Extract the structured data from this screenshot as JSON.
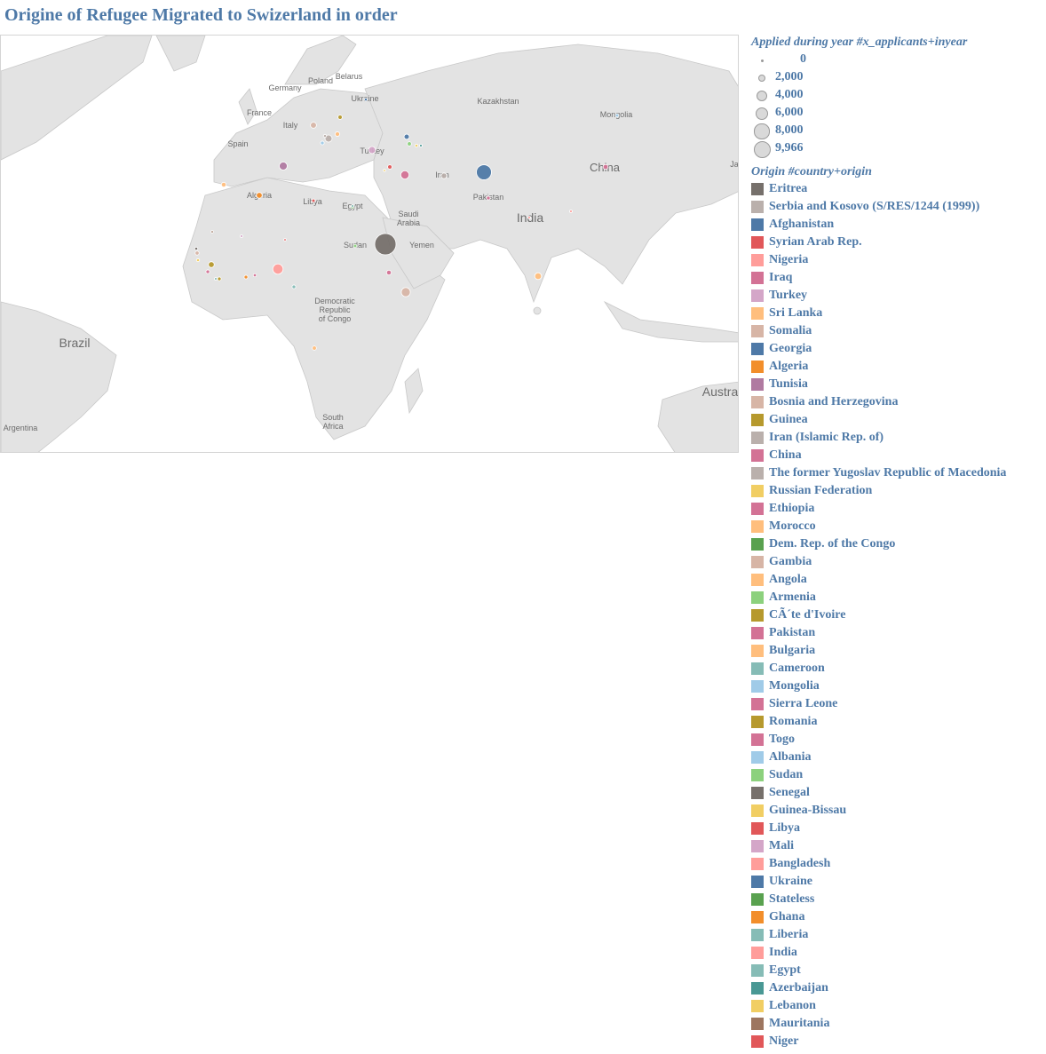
{
  "title": "Origine of Refugee Migrated to Swizerland in order",
  "map": {
    "region_labels": [
      {
        "id": "belarus",
        "text": "Belarus"
      },
      {
        "id": "poland",
        "text": "Poland"
      },
      {
        "id": "germany",
        "text": "Germany"
      },
      {
        "id": "ukraine",
        "text": "Ukraine"
      },
      {
        "id": "kazakhstan",
        "text": "Kazakhstan"
      },
      {
        "id": "mongolia",
        "text": "Mongolia"
      },
      {
        "id": "france",
        "text": "France"
      },
      {
        "id": "italy",
        "text": "Italy"
      },
      {
        "id": "spain",
        "text": "Spain"
      },
      {
        "id": "turkey",
        "text": "Turkey"
      },
      {
        "id": "china",
        "text": "China"
      },
      {
        "id": "iran",
        "text": "Iran"
      },
      {
        "id": "algeria",
        "text": "Algeria"
      },
      {
        "id": "libya",
        "text": "Libya"
      },
      {
        "id": "egypt",
        "text": "Egypt"
      },
      {
        "id": "saudi",
        "text": "Saudi Arabia"
      },
      {
        "id": "pakistan",
        "text": "Pakistan"
      },
      {
        "id": "india",
        "text": "India"
      },
      {
        "id": "sudan",
        "text": "Sudan"
      },
      {
        "id": "yemen",
        "text": "Yemen"
      },
      {
        "id": "drc",
        "text": "Democratic Republic of Congo"
      },
      {
        "id": "brazil",
        "text": "Brazil"
      },
      {
        "id": "south-africa",
        "text": "South Africa"
      },
      {
        "id": "australia",
        "text": "Austra"
      },
      {
        "id": "argentina",
        "text": "Argentina"
      },
      {
        "id": "japan",
        "text": "Ja"
      }
    ],
    "points": [
      {
        "origin": "Afghanistan",
        "applicants": 4950
      },
      {
        "origin": "Eritrea",
        "applicants": 9966
      },
      {
        "origin": "Tunisia",
        "applicants": 1400
      },
      {
        "origin": "Iraq",
        "applicants": 1500
      },
      {
        "origin": "Turkey",
        "applicants": 1100
      },
      {
        "origin": "Nigeria",
        "applicants": 2300
      },
      {
        "origin": "Somalia",
        "applicants": 1800
      },
      {
        "origin": "Sri Lanka",
        "applicants": 1000
      },
      {
        "origin": "Serbia and Kosovo (S/RES/1244 (1999))",
        "applicants": 1100
      },
      {
        "origin": "Bosnia and Herzegovina",
        "applicants": 800
      },
      {
        "origin": "Iran (Islamic Rep. of)",
        "applicants": 700
      },
      {
        "origin": "Guinea",
        "applicants": 750
      },
      {
        "origin": "Georgia",
        "applicants": 600
      },
      {
        "origin": "Algeria",
        "applicants": 750
      },
      {
        "origin": "China",
        "applicants": 550
      },
      {
        "origin": "Ethiopia",
        "applicants": 500
      },
      {
        "origin": "Morocco",
        "applicants": 500
      },
      {
        "origin": "Bulgaria",
        "applicants": 450
      },
      {
        "origin": "Angola",
        "applicants": 380
      },
      {
        "origin": "Gambia",
        "applicants": 350
      },
      {
        "origin": "Syrian Arab Rep.",
        "applicants": 400
      },
      {
        "origin": "Romania",
        "applicants": 400
      },
      {
        "origin": "Armenia",
        "applicants": 380
      },
      {
        "origin": "Côte d'Ivoire",
        "applicants": 300
      },
      {
        "origin": "Pakistan",
        "applicants": 300
      },
      {
        "origin": "Dem. Rep. of the Congo",
        "applicants": 300
      },
      {
        "origin": "Cameroon",
        "applicants": 300
      },
      {
        "origin": "Ghana",
        "applicants": 300
      },
      {
        "origin": "Sierra Leone",
        "applicants": 300
      },
      {
        "origin": "Mongolia",
        "applicants": 250
      },
      {
        "origin": "Albania",
        "applicants": 300
      },
      {
        "origin": "Sudan",
        "applicants": 250
      },
      {
        "origin": "Libya",
        "applicants": 250
      },
      {
        "origin": "Ukraine",
        "applicants": 200
      },
      {
        "origin": "Togo",
        "applicants": 220
      },
      {
        "origin": "Guinea-Bissau",
        "applicants": 200
      },
      {
        "origin": "Senegal",
        "applicants": 200
      },
      {
        "origin": "Russian Federation",
        "applicants": 200
      },
      {
        "origin": "The former Yugoslav Republic of Macedonia",
        "applicants": 200
      },
      {
        "origin": "Mali",
        "applicants": 150
      },
      {
        "origin": "Bangladesh",
        "applicants": 150
      },
      {
        "origin": "Liberia",
        "applicants": 150
      },
      {
        "origin": "India",
        "applicants": 150
      },
      {
        "origin": "Egypt",
        "applicants": 150
      },
      {
        "origin": "Azerbaijan",
        "applicants": 150
      },
      {
        "origin": "Lebanon",
        "applicants": 120
      },
      {
        "origin": "Mauritania",
        "applicants": 120
      },
      {
        "origin": "Niger",
        "applicants": 120
      }
    ]
  },
  "legend": {
    "size_title": "Applied during year #x_applicants+inyear",
    "size_items": [
      {
        "label": "0",
        "value": 0
      },
      {
        "label": "2,000",
        "value": 2000
      },
      {
        "label": "4,000",
        "value": 4000
      },
      {
        "label": "6,000",
        "value": 6000
      },
      {
        "label": "8,000",
        "value": 8000
      },
      {
        "label": "9,966",
        "value": 9966
      }
    ],
    "color_title": "Origin #country+origin",
    "color_items": [
      {
        "label": "Eritrea",
        "color": "#76706b"
      },
      {
        "label": "Serbia and Kosovo (S/RES/1244 (1999))",
        "color": "#bab0ac"
      },
      {
        "label": "Afghanistan",
        "color": "#4e79a7"
      },
      {
        "label": "Syrian Arab Rep.",
        "color": "#e15759"
      },
      {
        "label": "Nigeria",
        "color": "#ff9d9a"
      },
      {
        "label": "Iraq",
        "color": "#d37295"
      },
      {
        "label": "Turkey",
        "color": "#d4a6c8"
      },
      {
        "label": "Sri Lanka",
        "color": "#ffbe7d"
      },
      {
        "label": "Somalia",
        "color": "#d7b5a6"
      },
      {
        "label": "Georgia",
        "color": "#4e79a7"
      },
      {
        "label": "Algeria",
        "color": "#f28e2b"
      },
      {
        "label": "Tunisia",
        "color": "#b07aa1"
      },
      {
        "label": "Bosnia and Herzegovina",
        "color": "#d7b5a6"
      },
      {
        "label": "Guinea",
        "color": "#b6992d"
      },
      {
        "label": "Iran (Islamic Rep. of)",
        "color": "#bab0ac"
      },
      {
        "label": "China",
        "color": "#d37295"
      },
      {
        "label": "The former Yugoslav Republic of Macedonia",
        "color": "#bab0ac"
      },
      {
        "label": "Russian Federation",
        "color": "#f1ce63"
      },
      {
        "label": "Ethiopia",
        "color": "#d37295"
      },
      {
        "label": "Morocco",
        "color": "#ffbe7d"
      },
      {
        "label": "Dem. Rep. of the Congo",
        "color": "#59a14f"
      },
      {
        "label": "Gambia",
        "color": "#d7b5a6"
      },
      {
        "label": "Angola",
        "color": "#ffbe7d"
      },
      {
        "label": "Armenia",
        "color": "#8cd17d"
      },
      {
        "label": "CÃ´te d'Ivoire",
        "color": "#b6992d"
      },
      {
        "label": "Pakistan",
        "color": "#d37295"
      },
      {
        "label": "Bulgaria",
        "color": "#ffbe7d"
      },
      {
        "label": "Cameroon",
        "color": "#86bcb6"
      },
      {
        "label": "Mongolia",
        "color": "#a0cbe8"
      },
      {
        "label": "Sierra Leone",
        "color": "#d37295"
      },
      {
        "label": "Romania",
        "color": "#b6992d"
      },
      {
        "label": "Togo",
        "color": "#d37295"
      },
      {
        "label": "Albania",
        "color": "#a0cbe8"
      },
      {
        "label": "Sudan",
        "color": "#8cd17d"
      },
      {
        "label": "Senegal",
        "color": "#76706b"
      },
      {
        "label": "Guinea-Bissau",
        "color": "#f1ce63"
      },
      {
        "label": "Libya",
        "color": "#e15759"
      },
      {
        "label": "Mali",
        "color": "#d4a6c8"
      },
      {
        "label": "Bangladesh",
        "color": "#ff9d9a"
      },
      {
        "label": "Ukraine",
        "color": "#4e79a7"
      },
      {
        "label": "Stateless",
        "color": "#59a14f"
      },
      {
        "label": "Ghana",
        "color": "#f28e2b"
      },
      {
        "label": "Liberia",
        "color": "#86bcb6"
      },
      {
        "label": "India",
        "color": "#ff9d9a"
      },
      {
        "label": "Egypt",
        "color": "#86bcb6"
      },
      {
        "label": "Azerbaijan",
        "color": "#499894"
      },
      {
        "label": "Lebanon",
        "color": "#f1ce63"
      },
      {
        "label": "Mauritania",
        "color": "#9d7660"
      },
      {
        "label": "Niger",
        "color": "#e15759"
      }
    ]
  }
}
